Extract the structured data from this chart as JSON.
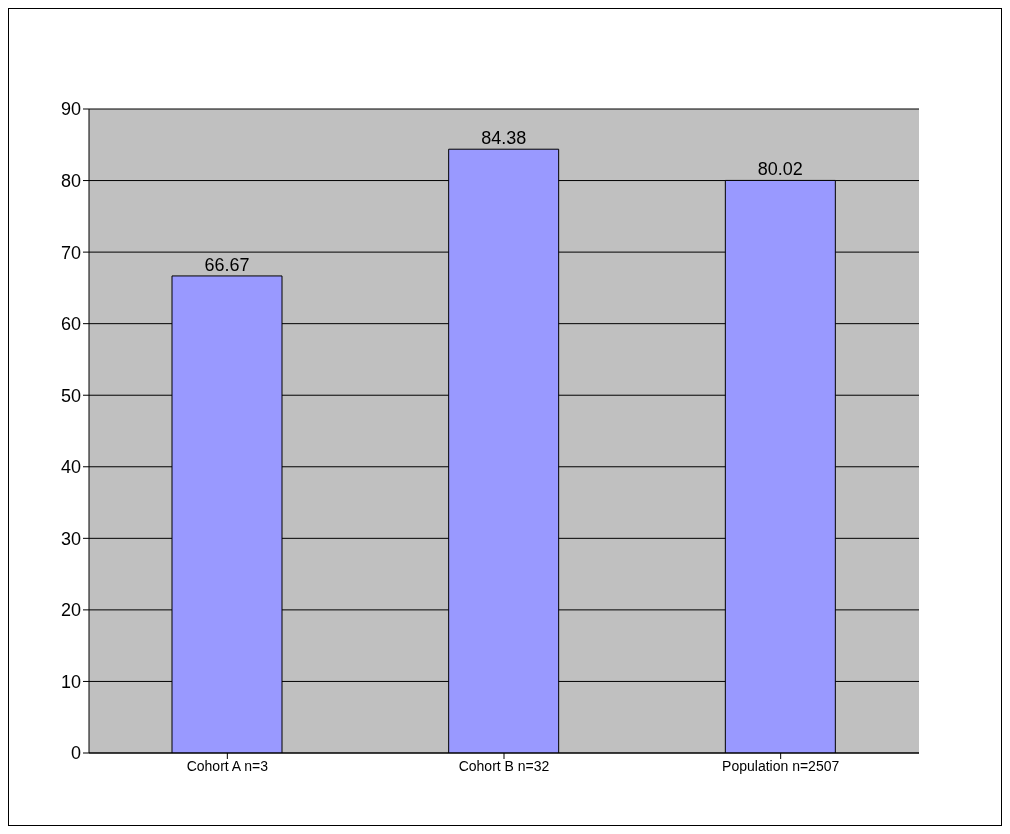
{
  "chart_data": {
    "type": "bar",
    "categories": [
      "Cohort A n=3",
      "Cohort B n=32",
      "Population n=2507"
    ],
    "values": [
      66.67,
      84.38,
      80.02
    ],
    "color": "#9999ff",
    "ylim": [
      0,
      90
    ],
    "yticks": [
      0,
      10,
      20,
      30,
      40,
      50,
      60,
      70,
      80,
      90
    ],
    "grid": "y",
    "data_labels": true
  }
}
